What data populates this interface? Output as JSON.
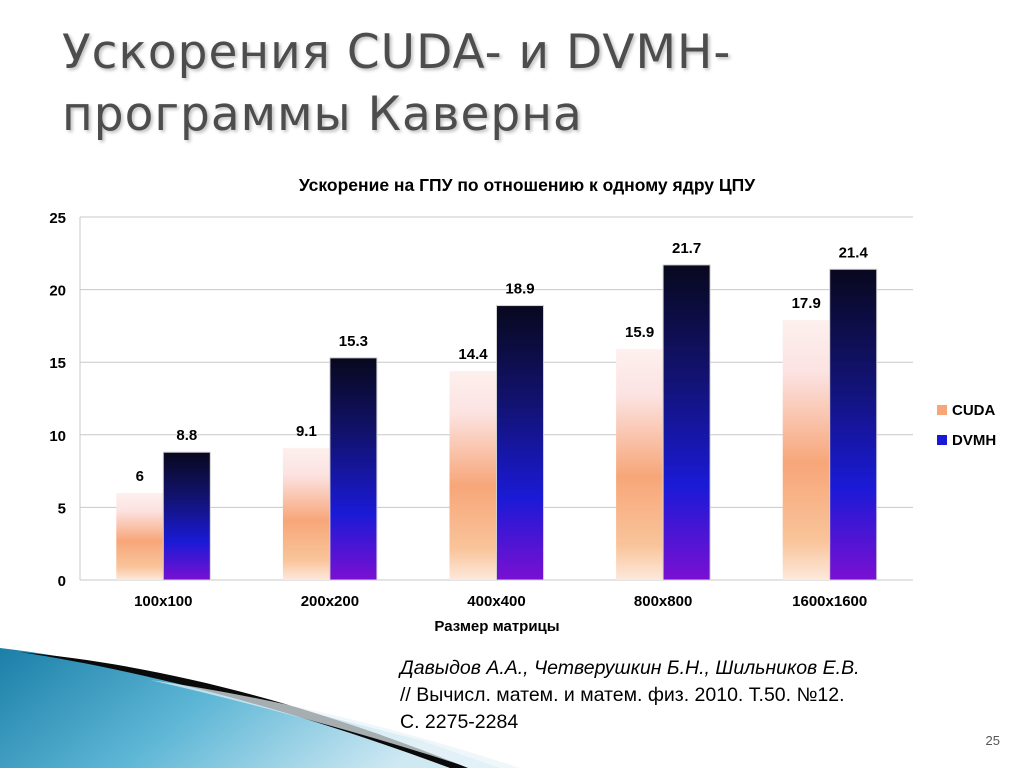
{
  "slide": {
    "title_line1": "Ускорения CUDA- и DVMH-",
    "title_line2": "программы Каверна",
    "citation_authors": "Давыдов А.А., Четверушкин Б.Н., Шильников Е.В.",
    "citation_source_line1": "// Вычисл. матем. и матем. физ. 2010. Т.50. №12.",
    "citation_source_line2": "С. 2275-2284",
    "page_number": "25"
  },
  "colors": {
    "cuda_top": "#fdf0ee",
    "cuda_mid": "#f7a679",
    "cuda_bottom": "#fde9dc",
    "dvmh_top": "#08081e",
    "dvmh_mid": "#1a1ad6",
    "dvmh_bottom": "#7a10d2",
    "grid": "#c8c8c8",
    "text": "#000000"
  },
  "chart_data": {
    "type": "bar",
    "title": "Ускорение на  ГПУ по отношению к одному ядру ЦПУ",
    "xlabel": "Размер матрицы",
    "ylabel": "",
    "categories": [
      "100x100",
      "200x200",
      "400x400",
      "800x800",
      "1600x1600"
    ],
    "series": [
      {
        "name": "CUDA",
        "values": [
          6,
          9.1,
          14.4,
          15.9,
          17.9
        ],
        "labels": [
          "6",
          "9.1",
          "14.4",
          "15.9",
          "17.9"
        ]
      },
      {
        "name": "DVMH",
        "values": [
          8.8,
          15.3,
          18.9,
          21.7,
          21.4
        ],
        "labels": [
          "8.8",
          "15.3",
          "18.9",
          "21.7",
          "21.4"
        ]
      }
    ],
    "ylim": [
      0,
      25
    ],
    "yticks": [
      0,
      5,
      10,
      15,
      20,
      25
    ],
    "grid": true,
    "legend_position": "right"
  }
}
